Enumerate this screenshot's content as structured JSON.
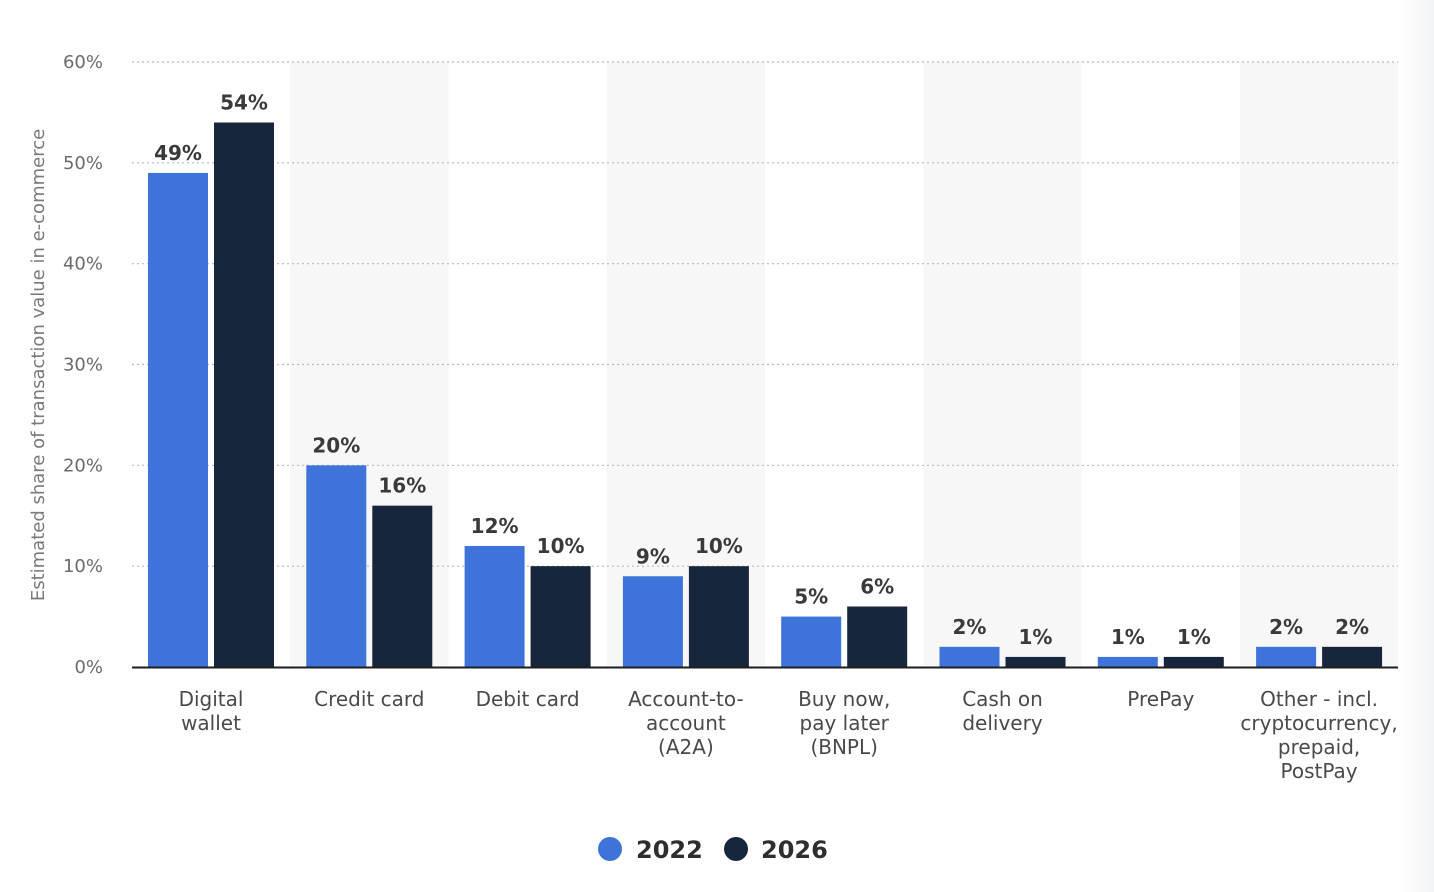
{
  "chart_data": {
    "type": "bar",
    "categories": [
      [
        "Digital",
        "wallet"
      ],
      [
        "Credit card"
      ],
      [
        "Debit card"
      ],
      [
        "Account-to-",
        "account",
        "(A2A)"
      ],
      [
        "Buy now,",
        "pay later",
        "(BNPL)"
      ],
      [
        "Cash on",
        "delivery"
      ],
      [
        "PrePay"
      ],
      [
        "Other - incl.",
        "cryptocurrency,",
        "prepaid,",
        "PostPay"
      ]
    ],
    "series": [
      {
        "name": "2022",
        "color": "#3e74d9",
        "values": [
          49,
          20,
          12,
          9,
          5,
          2,
          1,
          2
        ],
        "labels": [
          "49%",
          "20%",
          "12%",
          "9%",
          "5%",
          "2%",
          "1%",
          "2%"
        ]
      },
      {
        "name": "2026",
        "color": "#17263d",
        "values": [
          54,
          16,
          10,
          10,
          6,
          1,
          1,
          2
        ],
        "labels": [
          "54%",
          "16%",
          "10%",
          "10%",
          "6%",
          "1%",
          "1%",
          "2%"
        ]
      }
    ],
    "ylabel": "Estimated share of transaction value in e-commerce",
    "xlabel": "",
    "ylim": [
      0,
      60
    ],
    "yticks": [
      0,
      10,
      20,
      30,
      40,
      50,
      60
    ],
    "ytick_labels": [
      "0%",
      "10%",
      "20%",
      "30%",
      "40%",
      "50%",
      "60%"
    ],
    "grid": "dotted horizontal",
    "alternating_band_color": "#f7f7f8",
    "legend_position": "bottom-center"
  }
}
